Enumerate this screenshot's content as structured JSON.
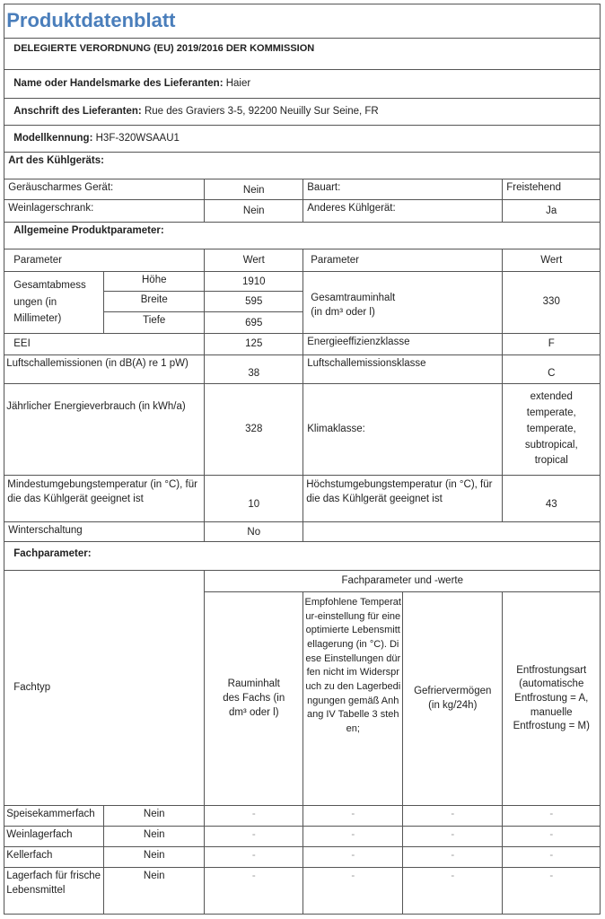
{
  "title": "Produktdatenblatt",
  "regulation": "DELEGIERTE VERORDNUNG (EU) 2019/2016 DER KOMMISSION",
  "supplier": {
    "label": "Name oder Handelsmarke des Lieferanten:",
    "value": "Haier"
  },
  "address": {
    "label": "Anschrift des Lieferanten:",
    "value": "Rue des Graviers 3-5, 92200 Neuilly Sur Seine, FR"
  },
  "model": {
    "label": "Modellkennung:",
    "value": "H3F-320WSAAU1"
  },
  "type_section": {
    "heading": "Art des Kühlgeräts:",
    "rows": [
      [
        "Geräuscharmes Gerät:",
        "Nein",
        "Bauart:",
        "Freistehend"
      ],
      [
        "Weinlagerschrank:",
        "Nein",
        "Anderes Kühlgerät:",
        "Ja"
      ]
    ]
  },
  "general": {
    "heading": "Allgemeine Produktparameter:",
    "col_param": "Parameter",
    "col_value": "Wert",
    "dimensions": {
      "label": "Gesamtabmess ungen (in Millimeter)",
      "items": [
        [
          "Höhe",
          "1910"
        ],
        [
          "Breite",
          "595"
        ],
        [
          "Tiefe",
          "695"
        ]
      ]
    },
    "volume": {
      "label": "Gesamtrauminhalt",
      "unit": "(in dm³ oder l)",
      "value": "330"
    },
    "eei": {
      "label": "EEI",
      "value": "125"
    },
    "energy_class": {
      "label": "Energieeffizienzklasse",
      "value": "F"
    },
    "noise": {
      "label": "Luftschallemissionen (in dB(A) re 1 pW)",
      "value": "38"
    },
    "noise_class": {
      "label": "Luftschallemissionsklasse",
      "value": "C"
    },
    "annual_energy": {
      "label": "Jährlicher Energieverbrauch (in kWh/a)",
      "value": "328"
    },
    "climate": {
      "label": "Klimaklasse:",
      "value": "extended temperate, temperate, subtropical, tropical"
    },
    "min_temp": {
      "label": "Mindestumgebungstemperatur (in °C), für die das Kühlgerät geeignet ist",
      "value": "10"
    },
    "max_temp": {
      "label": "Höchstumgebungstemperatur (in °C), für die das Kühlgerät geeignet ist",
      "value": "43"
    },
    "winter": {
      "label": "Winterschaltung",
      "value": "No"
    }
  },
  "compartments": {
    "heading": "Fachparameter:",
    "group_header": "Fachparameter und -werte",
    "type_header": "Fachtyp",
    "columns": [
      "Rauminhalt des Fachs (in dm³ oder l)",
      "Empfohlene Temperatur-einstellung für eine optimierte Lebensmittellagerung (in °C). Diese Einstellungen dürfen nicht im Widerspruch zu den Lagerbedingungen gemäß Anhang IV Tabelle 3 stehen;",
      "Gefriervermögen (in kg/24h)",
      "Entfrostungsart (automatische Entfrostung = A, manuelle Entfrostung = M)"
    ],
    "rows": [
      [
        "Speisekammerfach",
        "Nein",
        "-",
        "-",
        "-",
        "-"
      ],
      [
        "Weinlagerfach",
        "Nein",
        "-",
        "-",
        "-",
        "-"
      ],
      [
        "Kellerfach",
        "Nein",
        "-",
        "-",
        "-",
        "-"
      ],
      [
        "Lagerfach für frische Lebensmittel",
        "Nein",
        "-",
        "-",
        "-",
        "-"
      ]
    ]
  }
}
